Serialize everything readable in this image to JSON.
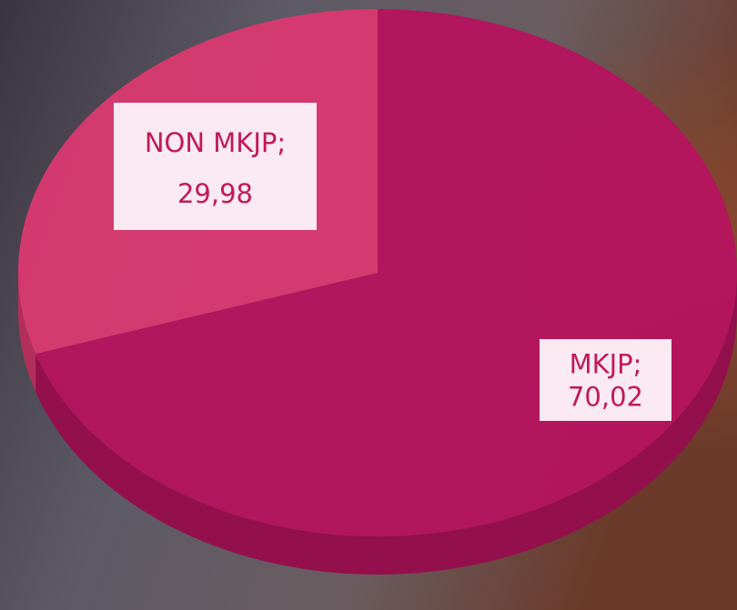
{
  "chart_data": {
    "type": "pie3d",
    "categories": [
      "MKJP;",
      "NON MKJP;"
    ],
    "values": [
      70.02,
      29.98
    ],
    "value_labels": [
      "70,02",
      "29,98"
    ],
    "colors": [
      "#b5145f",
      "#d9396f"
    ]
  }
}
